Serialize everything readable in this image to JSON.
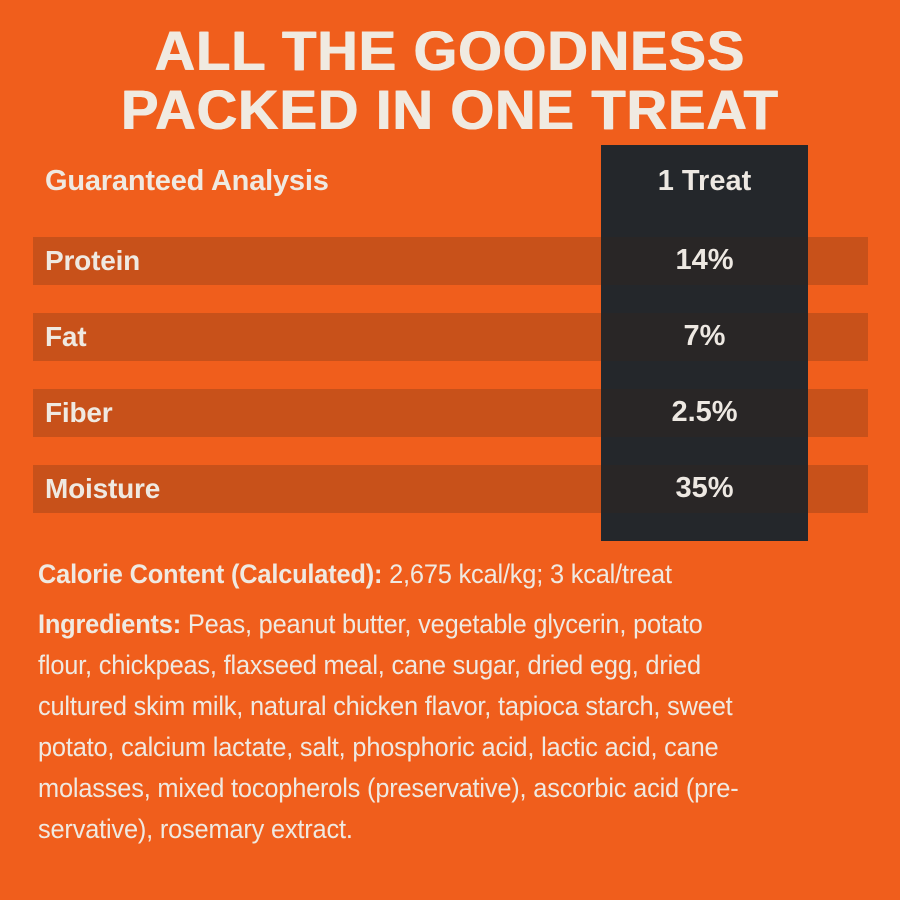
{
  "title": {
    "line1": "ALL THE GOODNESS",
    "line2": "PACKED IN ONE TREAT"
  },
  "analysis_table": {
    "header": {
      "label": "Guaranteed Analysis",
      "column": "1 Treat"
    },
    "rows": [
      {
        "label": "Protein",
        "value": "14%"
      },
      {
        "label": "Fat",
        "value": "7%"
      },
      {
        "label": "Fiber",
        "value": "2.5%"
      },
      {
        "label": "Moisture",
        "value": "35%"
      }
    ]
  },
  "calorie": {
    "label": "Calorie Content (Calculated):",
    "value": " 2,675 kcal/kg; 3 kcal/treat"
  },
  "ingredients": {
    "label": "Ingredients:",
    "lines": [
      " Peas, peanut butter, vegetable glycerin, potato",
      "flour, chickpeas, flaxseed meal, cane sugar, dried egg, dried",
      "cultured skim milk, natural chicken flavor, tapioca starch, sweet",
      "potato, calcium lactate, salt, phosphoric acid, lactic acid, cane",
      "molasses, mixed tocopherols (preservative), ascorbic acid (pre-",
      "servative), rosemary extract."
    ]
  },
  "colors": {
    "background": "#F05E1C",
    "row_stripe_overlay": "rgba(60,35,25,0.22)",
    "panel_dark": "#24272B",
    "text": "#EFE9E1"
  }
}
